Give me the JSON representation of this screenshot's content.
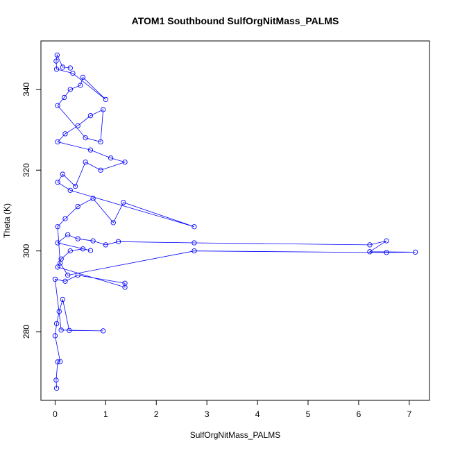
{
  "chart_data": {
    "type": "scatter",
    "title": "ATOM1 Southbound SulfOrgNitMass_PALMS",
    "xlabel": "SulfOrgNitMass_PALMS",
    "ylabel": "Theta (K)",
    "xlim": [
      -0.28,
      7.4
    ],
    "ylim": [
      263,
      352
    ],
    "x_ticks": [
      0,
      1,
      2,
      3,
      4,
      5,
      6,
      7
    ],
    "y_ticks": [
      280,
      300,
      320,
      340
    ],
    "grid": false,
    "legend": "none",
    "color": "#0000ff",
    "marker": "open-circle",
    "connected": true,
    "series": [
      {
        "points": [
          [
            0.03,
            266
          ],
          [
            0.02,
            268
          ],
          [
            0.05,
            272.5
          ],
          [
            0.1,
            272.6
          ],
          [
            0.0,
            279
          ],
          [
            0.03,
            282
          ],
          [
            0.08,
            285
          ],
          [
            0.15,
            288
          ],
          [
            0.28,
            280.3
          ],
          [
            0.95,
            280.2
          ],
          [
            0.12,
            280.4
          ],
          [
            0.0,
            293
          ],
          [
            0.2,
            292.5
          ],
          [
            0.45,
            294
          ],
          [
            1.38,
            292
          ],
          [
            1.38,
            291
          ],
          [
            0.05,
            296
          ],
          [
            0.12,
            298
          ],
          [
            0.3,
            300
          ],
          [
            0.55,
            300.5
          ],
          [
            0.7,
            300.1
          ],
          [
            0.05,
            302
          ],
          [
            0.25,
            304
          ],
          [
            0.45,
            303
          ],
          [
            0.75,
            302.5
          ],
          [
            1.0,
            301.5
          ],
          [
            1.25,
            302.3
          ],
          [
            2.75,
            302.0
          ],
          [
            6.22,
            301.5
          ],
          [
            6.55,
            302.5
          ],
          [
            6.22,
            299.8
          ],
          [
            7.12,
            299.7
          ],
          [
            6.55,
            299.6
          ],
          [
            2.75,
            300
          ],
          [
            0.25,
            294
          ],
          [
            0.1,
            297
          ],
          [
            0.05,
            306
          ],
          [
            0.2,
            308
          ],
          [
            0.45,
            311
          ],
          [
            0.75,
            313
          ],
          [
            1.15,
            307
          ],
          [
            1.35,
            312
          ],
          [
            2.75,
            306
          ],
          [
            0.3,
            315
          ],
          [
            0.05,
            317
          ],
          [
            0.15,
            319
          ],
          [
            0.4,
            316
          ],
          [
            0.6,
            322
          ],
          [
            0.9,
            320
          ],
          [
            1.38,
            322
          ],
          [
            1.1,
            323
          ],
          [
            0.7,
            325
          ],
          [
            0.05,
            327
          ],
          [
            0.2,
            329
          ],
          [
            0.45,
            331
          ],
          [
            0.7,
            333.5
          ],
          [
            0.95,
            335
          ],
          [
            0.9,
            327
          ],
          [
            0.6,
            328
          ],
          [
            0.05,
            336
          ],
          [
            0.18,
            338
          ],
          [
            0.3,
            340
          ],
          [
            0.5,
            341
          ],
          [
            0.55,
            343
          ],
          [
            1.0,
            337.5
          ],
          [
            0.35,
            344
          ],
          [
            0.03,
            345
          ],
          [
            0.02,
            347
          ],
          [
            0.04,
            348.5
          ],
          [
            0.15,
            345.5
          ],
          [
            0.3,
            345.3
          ]
        ]
      }
    ]
  }
}
